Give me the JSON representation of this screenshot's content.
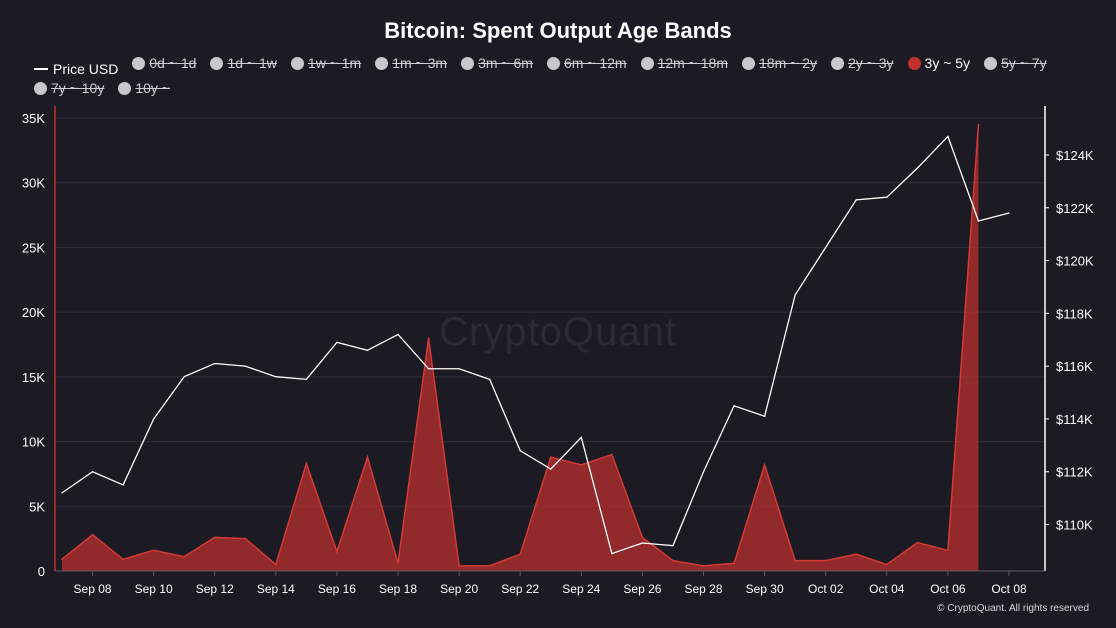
{
  "chart_data": {
    "type": "area",
    "title": "Bitcoin: Spent Output Age Bands",
    "legend": [
      {
        "label": "Price USD",
        "kind": "line",
        "active": true,
        "color": "#ffffff"
      },
      {
        "label": "0d ~ 1d",
        "kind": "dot",
        "active": false
      },
      {
        "label": "1d ~ 1w",
        "kind": "dot",
        "active": false
      },
      {
        "label": "1w ~ 1m",
        "kind": "dot",
        "active": false
      },
      {
        "label": "1m ~ 3m",
        "kind": "dot",
        "active": false
      },
      {
        "label": "3m ~ 6m",
        "kind": "dot",
        "active": false
      },
      {
        "label": "6m ~ 12m",
        "kind": "dot",
        "active": false
      },
      {
        "label": "12m ~ 18m",
        "kind": "dot",
        "active": false
      },
      {
        "label": "18m ~ 2y",
        "kind": "dot",
        "active": false
      },
      {
        "label": "2y ~ 3y",
        "kind": "dot",
        "active": false
      },
      {
        "label": "3y ~ 5y",
        "kind": "dot",
        "active": true,
        "color": "#c0302f"
      },
      {
        "label": "5y ~ 7y",
        "kind": "dot",
        "active": false
      },
      {
        "label": "7y ~ 10y",
        "kind": "dot",
        "active": false
      },
      {
        "label": "10y ~",
        "kind": "dot",
        "active": false
      }
    ],
    "x": [
      "Sep 07",
      "Sep 08",
      "Sep 09",
      "Sep 10",
      "Sep 11",
      "Sep 12",
      "Sep 13",
      "Sep 14",
      "Sep 15",
      "Sep 16",
      "Sep 17",
      "Sep 18",
      "Sep 19",
      "Sep 20",
      "Sep 21",
      "Sep 22",
      "Sep 23",
      "Sep 24",
      "Sep 25",
      "Sep 26",
      "Sep 27",
      "Sep 28",
      "Sep 29",
      "Sep 30",
      "Oct 01",
      "Oct 02",
      "Oct 03",
      "Oct 04",
      "Oct 05",
      "Oct 06",
      "Oct 07",
      "Oct 08"
    ],
    "x_tick_labels": [
      "Sep 08",
      "Sep 10",
      "Sep 12",
      "Sep 14",
      "Sep 16",
      "Sep 18",
      "Sep 20",
      "Sep 22",
      "Sep 24",
      "Sep 26",
      "Sep 28",
      "Sep 30",
      "Oct 02",
      "Oct 04",
      "Oct 06",
      "Oct 08"
    ],
    "series": [
      {
        "name": "3y ~ 5y",
        "type": "area",
        "axis": "left",
        "color": "#c0302f",
        "values": [
          900,
          2800,
          900,
          1600,
          1100,
          2600,
          2500,
          500,
          8300,
          1500,
          8800,
          600,
          18000,
          400,
          400,
          1300,
          8800,
          8200,
          9000,
          2600,
          800,
          400,
          600,
          8200,
          800,
          800,
          1300,
          500,
          2200,
          1600,
          34500,
          null
        ]
      },
      {
        "name": "Price USD",
        "type": "line",
        "axis": "right",
        "color": "#ffffff",
        "values": [
          111200,
          112000,
          111500,
          114000,
          115600,
          116100,
          116000,
          115600,
          115500,
          116900,
          116600,
          117200,
          115900,
          115900,
          115500,
          112800,
          112100,
          113300,
          108900,
          109300,
          109200,
          112000,
          114500,
          114100,
          118700,
          120500,
          122300,
          122400,
          123500,
          124700,
          121500,
          121800
        ]
      }
    ],
    "yleft": {
      "min": 0,
      "max": 35000,
      "ticks": [
        0,
        5000,
        10000,
        15000,
        20000,
        25000,
        30000,
        35000
      ],
      "tick_labels": [
        "0",
        "5K",
        "10K",
        "15K",
        "20K",
        "25K",
        "30K",
        "35K"
      ]
    },
    "yright": {
      "min": 108240,
      "max": 125400,
      "ticks": [
        110000,
        112000,
        114000,
        116000,
        118000,
        120000,
        122000,
        124000
      ],
      "tick_labels": [
        "$110K",
        "$112K",
        "$114K",
        "$116K",
        "$118K",
        "$120K",
        "$122K",
        "$124K"
      ]
    },
    "grid": true
  },
  "watermark": "CryptoQuant",
  "copyright": "© CryptoQuant. All rights reserved"
}
